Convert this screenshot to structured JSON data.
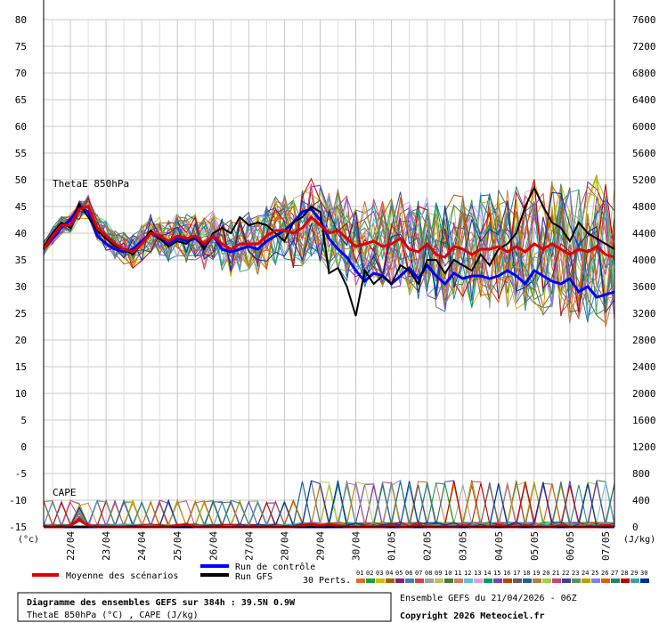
{
  "chart_data": {
    "type": "line",
    "title": "Diagramme des ensembles GEFS sur 384h : 39.5N 0.9W",
    "subtitle": "ThetaE 850hPa (°C) , CAPE (J/kg)",
    "run_info": "Ensemble GEFS du 21/04/2026 - 06Z",
    "copyright": "Copyright 2026 Meteociel.fr",
    "left_unit": "(°c)",
    "right_unit": "(J/kg)",
    "panel_labels": {
      "thetae": "ThetaE 850hPa",
      "cape": "CAPE"
    },
    "ylim_left": [
      -15,
      80
    ],
    "ylim_right": [
      0,
      7600
    ],
    "left_ticks": [
      80,
      75,
      70,
      65,
      60,
      55,
      50,
      45,
      40,
      35,
      30,
      25,
      20,
      15,
      10,
      5,
      0,
      -5,
      -10,
      -15
    ],
    "right_ticks": [
      7600,
      7200,
      6800,
      6400,
      6000,
      5600,
      5200,
      4800,
      4400,
      4000,
      3600,
      3200,
      2800,
      2400,
      2000,
      1600,
      1200,
      800,
      400,
      0
    ],
    "x_hours": [
      0,
      6,
      12,
      18,
      24,
      30,
      36,
      42,
      48,
      54,
      60,
      66,
      72,
      78,
      84,
      90,
      96,
      102,
      108,
      114,
      120,
      126,
      132,
      138,
      144,
      150,
      156,
      162,
      168,
      174,
      180,
      186,
      192,
      198,
      204,
      210,
      216,
      222,
      228,
      234,
      240,
      246,
      252,
      258,
      264,
      270,
      276,
      282,
      288,
      294,
      300,
      306,
      312,
      318,
      324,
      330,
      336,
      342,
      348,
      354,
      360,
      366,
      372,
      378,
      384
    ],
    "x_tick_labels": [
      "22/04",
      "23/04",
      "24/04",
      "25/04",
      "26/04",
      "27/04",
      "28/04",
      "29/04",
      "30/04",
      "01/05",
      "02/05",
      "03/05",
      "04/05",
      "05/05",
      "06/05",
      "07/05"
    ],
    "legend": {
      "mean": "Moyenne des scénarios",
      "control": "Run de contrôle",
      "gfs": "Run GFS",
      "perts": "30 Perts."
    },
    "pert_labels": [
      "01",
      "02",
      "03",
      "04",
      "05",
      "06",
      "07",
      "08",
      "09",
      "10",
      "11",
      "12",
      "13",
      "14",
      "15",
      "16",
      "17",
      "18",
      "19",
      "20",
      "21",
      "22",
      "23",
      "24",
      "25",
      "26",
      "27",
      "28",
      "29",
      "30"
    ],
    "pert_colors": [
      "#e07020",
      "#20a040",
      "#d0c000",
      "#a06000",
      "#802080",
      "#4080c0",
      "#e04040",
      "#a0a0a0",
      "#c0c060",
      "#408040",
      "#d08060",
      "#60c0e0",
      "#e0a0e0",
      "#00a060",
      "#8040c0",
      "#c04000",
      "#606060",
      "#2060a0",
      "#b08040",
      "#a0d040",
      "#d04080",
      "#4040a0",
      "#609060",
      "#c0a000",
      "#8080ff",
      "#e06000",
      "#208080",
      "#c00000",
      "#40a0a0",
      "#0030a0"
    ],
    "mean_thetae": [
      37.0,
      39.5,
      41.5,
      41.5,
      44.5,
      45.0,
      41.0,
      39.5,
      38.0,
      37.0,
      36.5,
      38.0,
      40.0,
      39.5,
      38.5,
      39.5,
      39.0,
      39.5,
      38.0,
      39.5,
      38.0,
      37.0,
      38.0,
      38.0,
      38.0,
      39.5,
      40.5,
      40.5,
      40.0,
      41.0,
      43.0,
      41.5,
      40.0,
      40.5,
      39.0,
      37.5,
      38.0,
      38.5,
      37.5,
      38.0,
      39.0,
      37.0,
      36.5,
      38.0,
      36.0,
      35.5,
      37.5,
      37.0,
      36.0,
      37.0,
      37.0,
      37.5,
      36.5,
      37.5,
      36.5,
      38.0,
      37.0,
      38.0,
      37.0,
      36.0,
      37.0,
      36.5,
      37.5,
      36.0,
      35.5
    ],
    "control_thetae": [
      37.0,
      39.0,
      41.0,
      42.5,
      45.0,
      44.0,
      39.5,
      38.0,
      37.0,
      36.5,
      37.0,
      38.5,
      40.0,
      39.0,
      38.0,
      39.0,
      38.5,
      39.0,
      37.5,
      39.5,
      37.0,
      36.5,
      37.0,
      37.5,
      37.0,
      38.5,
      39.5,
      40.5,
      42.0,
      44.0,
      44.5,
      42.5,
      39.0,
      37.0,
      35.5,
      33.0,
      31.0,
      32.5,
      32.0,
      30.5,
      32.0,
      33.5,
      31.5,
      34.0,
      32.0,
      30.5,
      32.5,
      31.5,
      32.0,
      32.0,
      31.5,
      32.0,
      33.0,
      32.0,
      30.5,
      33.0,
      32.0,
      31.0,
      30.5,
      31.5,
      29.0,
      30.0,
      28.0,
      28.5,
      29.0
    ],
    "gfs_thetae": [
      37.5,
      40.0,
      42.0,
      41.0,
      45.5,
      43.0,
      40.5,
      39.0,
      37.5,
      37.0,
      36.0,
      38.0,
      40.5,
      39.0,
      37.5,
      38.5,
      38.0,
      39.5,
      37.0,
      40.0,
      41.0,
      40.0,
      43.0,
      41.5,
      42.0,
      41.5,
      40.0,
      38.5,
      42.0,
      43.0,
      45.0,
      44.0,
      32.5,
      33.5,
      30.0,
      24.5,
      33.0,
      30.5,
      32.0,
      30.5,
      34.0,
      33.0,
      30.5,
      35.0,
      35.0,
      32.5,
      35.0,
      34.0,
      33.0,
      36.0,
      34.0,
      37.0,
      38.0,
      40.0,
      45.0,
      48.5,
      45.0,
      42.0,
      41.0,
      38.5,
      42.0,
      40.0,
      39.0,
      38.0,
      37.0
    ],
    "mean_cape": [
      0,
      0,
      0,
      20,
      100,
      20,
      0,
      0,
      0,
      0,
      0,
      0,
      0,
      0,
      0,
      20,
      40,
      0,
      0,
      0,
      0,
      0,
      0,
      0,
      0,
      0,
      0,
      0,
      0,
      20,
      40,
      20,
      40,
      20,
      0,
      0,
      0,
      0,
      0,
      20,
      0,
      0,
      20,
      0,
      0,
      0,
      0,
      20,
      0,
      0,
      0,
      20,
      0,
      0,
      20,
      0,
      0,
      0,
      20,
      0,
      0,
      0,
      0,
      20,
      0
    ],
    "control_cape": [
      0,
      0,
      0,
      0,
      0,
      0,
      0,
      0,
      0,
      0,
      0,
      0,
      0,
      0,
      0,
      0,
      0,
      0,
      0,
      0,
      0,
      0,
      0,
      0,
      0,
      0,
      0,
      0,
      0,
      0,
      0,
      0,
      0,
      0,
      0,
      0,
      0,
      0,
      0,
      0,
      0,
      0,
      0,
      0,
      0,
      0,
      0,
      0,
      0,
      0,
      0,
      0,
      0,
      0,
      0,
      0,
      0,
      0,
      0,
      0,
      0,
      0,
      0,
      0,
      0
    ],
    "gfs_cape": [
      0,
      0,
      0,
      0,
      0,
      0,
      0,
      0,
      0,
      0,
      0,
      0,
      0,
      0,
      0,
      0,
      0,
      0,
      0,
      0,
      0,
      0,
      0,
      0,
      0,
      0,
      0,
      0,
      0,
      0,
      0,
      0,
      0,
      0,
      0,
      0,
      0,
      0,
      0,
      0,
      0,
      0,
      0,
      0,
      0,
      0,
      0,
      0,
      0,
      0,
      0,
      0,
      0,
      0,
      0,
      0,
      0,
      0,
      0,
      0,
      0,
      0,
      0,
      0,
      0
    ]
  }
}
